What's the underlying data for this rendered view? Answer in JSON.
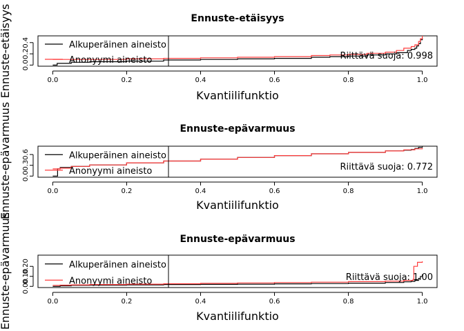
{
  "chart_data": [
    {
      "type": "line",
      "title": "Ennuste-etäisyys",
      "xlabel": "Kvantiilifunktio",
      "ylabel": "Ennuste-etäisyys",
      "xlim": [
        0,
        1
      ],
      "ylim": [
        0,
        0.5
      ],
      "xticks": [
        0,
        0.2,
        0.4,
        0.6,
        0.8,
        1
      ],
      "xtick_labels": [
        "0.0",
        "0.2",
        "0.4",
        "0.6",
        "0.8",
        "1.0"
      ],
      "yticks": [
        0,
        0.2,
        0.4
      ],
      "ytick_labels": [
        "0.0",
        "0.2",
        "0.4"
      ],
      "legend": {
        "position": "top-left",
        "labels": [
          "Alkuperäinen aineisto",
          "Anonyymi aineisto"
        ]
      },
      "annotation": "Riittävä suoja:  0.998",
      "series": [
        {
          "name": "Alkuperäinen aineisto",
          "color": "#000000",
          "x": [
            0.0,
            0.01,
            0.012,
            0.05,
            0.1,
            0.2,
            0.3,
            0.4,
            0.5,
            0.6,
            0.7,
            0.75,
            0.8,
            0.85,
            0.9,
            0.93,
            0.96,
            0.97,
            0.98,
            0.985,
            0.99,
            0.995,
            1.0
          ],
          "y": [
            0.0,
            0.0,
            0.03,
            0.05,
            0.06,
            0.07,
            0.09,
            0.1,
            0.11,
            0.12,
            0.14,
            0.15,
            0.16,
            0.18,
            0.2,
            0.22,
            0.26,
            0.28,
            0.3,
            0.34,
            0.38,
            0.45,
            0.48
          ]
        },
        {
          "name": "Anonyymi aineisto",
          "color": "#ff3b3b",
          "x": [
            0.0,
            0.05,
            0.1,
            0.2,
            0.3,
            0.4,
            0.5,
            0.6,
            0.7,
            0.75,
            0.8,
            0.85,
            0.9,
            0.93,
            0.95,
            0.97,
            0.98,
            0.99,
            0.995,
            1.0
          ],
          "y": [
            0.1,
            0.1,
            0.1,
            0.11,
            0.12,
            0.13,
            0.14,
            0.15,
            0.17,
            0.18,
            0.19,
            0.21,
            0.23,
            0.26,
            0.3,
            0.33,
            0.36,
            0.42,
            0.47,
            0.52
          ]
        }
      ]
    },
    {
      "type": "line",
      "title": "Ennuste-epävarmuus",
      "xlabel": "Kvantiilifunktio",
      "ylabel": "Ennuste-epävarmuus",
      "xlim": [
        0,
        1
      ],
      "ylim": [
        0,
        0.8
      ],
      "xticks": [
        0,
        0.2,
        0.4,
        0.6,
        0.8,
        1
      ],
      "xtick_labels": [
        "0.0",
        "0.2",
        "0.4",
        "0.6",
        "0.8",
        "1.0"
      ],
      "yticks": [
        0,
        0.3,
        0.6
      ],
      "ytick_labels": [
        "0.0",
        "0.3",
        "0.6"
      ],
      "legend": {
        "position": "top-left",
        "labels": [
          "Alkuperäinen aineisto",
          "Anonyymi aineisto"
        ]
      },
      "annotation": "Riittävä suoja:  0.772",
      "series": [
        {
          "name": "Alkuperäinen aineisto",
          "color": "#000000",
          "x": [
            0.0,
            0.012,
            0.013,
            0.02,
            0.05,
            0.1,
            0.2,
            0.3,
            0.4,
            0.5,
            0.6,
            0.7,
            0.8,
            0.9,
            0.95,
            0.97,
            0.98,
            0.99,
            1.0
          ],
          "y": [
            0.0,
            0.0,
            0.2,
            0.24,
            0.27,
            0.31,
            0.37,
            0.42,
            0.47,
            0.52,
            0.57,
            0.62,
            0.66,
            0.7,
            0.72,
            0.74,
            0.77,
            0.8,
            0.82
          ]
        },
        {
          "name": "Anonyymi aineisto",
          "color": "#ff3b3b",
          "x": [
            0.0,
            0.02,
            0.05,
            0.1,
            0.2,
            0.3,
            0.4,
            0.5,
            0.6,
            0.7,
            0.8,
            0.9,
            0.95,
            0.98,
            1.0
          ],
          "y": [
            0.2,
            0.22,
            0.27,
            0.31,
            0.37,
            0.42,
            0.47,
            0.52,
            0.57,
            0.62,
            0.66,
            0.7,
            0.73,
            0.76,
            0.78
          ]
        }
      ]
    },
    {
      "type": "line",
      "title": "Ennuste-epävarmuus",
      "xlabel": "Kvantiilifunktio",
      "ylabel": "Ennuste-epävarmuus",
      "xlim": [
        0,
        1
      ],
      "ylim": [
        0,
        0.3
      ],
      "xticks": [
        0,
        0.2,
        0.4,
        0.6,
        0.8,
        1
      ],
      "xtick_labels": [
        "0.0",
        "0.2",
        "0.4",
        "0.6",
        "0.8",
        "1.0"
      ],
      "yticks": [
        0,
        0.1,
        0.2
      ],
      "ytick_labels": [
        "0.00",
        "0.10",
        "0.20"
      ],
      "legend": {
        "position": "top-left",
        "labels": [
          "Alkuperäinen aineisto",
          "Anonyymi aineisto"
        ]
      },
      "annotation": "Riittävä suoja:  1.00",
      "series": [
        {
          "name": "Alkuperäinen aineisto",
          "color": "#000000",
          "x": [
            0.0,
            0.01,
            0.02,
            0.05,
            0.1,
            0.2,
            0.3,
            0.4,
            0.5,
            0.6,
            0.7,
            0.8,
            0.9,
            0.95,
            0.97,
            0.98,
            0.99,
            0.995,
            1.0
          ],
          "y": [
            0.0,
            0.0,
            0.005,
            0.01,
            0.012,
            0.015,
            0.018,
            0.02,
            0.022,
            0.025,
            0.028,
            0.032,
            0.038,
            0.045,
            0.05,
            0.06,
            0.08,
            0.1,
            0.12
          ]
        },
        {
          "name": "Anonyymi aineisto",
          "color": "#ff3b3b",
          "x": [
            0.0,
            0.02,
            0.05,
            0.1,
            0.2,
            0.3,
            0.4,
            0.5,
            0.6,
            0.7,
            0.8,
            0.9,
            0.95,
            0.975,
            0.977,
            0.985,
            0.987,
            1.0
          ],
          "y": [
            0.01,
            0.012,
            0.015,
            0.018,
            0.022,
            0.026,
            0.03,
            0.034,
            0.038,
            0.042,
            0.047,
            0.052,
            0.06,
            0.07,
            0.2,
            0.2,
            0.24,
            0.25
          ]
        }
      ]
    }
  ]
}
